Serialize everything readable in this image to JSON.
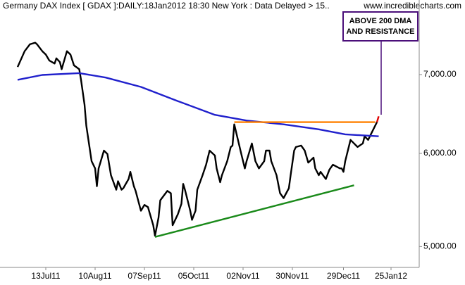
{
  "chart_data": {
    "type": "line",
    "title": "Germany DAX Index [ GDAX ]:DAILY:18Jan2012 18:30 New York : Data Delayed > 15..",
    "source": "www.incrediblecharts.com",
    "annotation": [
      "ABOVE 200 DMA",
      "AND RESISTANCE"
    ],
    "annotation_color": "#4b0f7a",
    "ylog": true,
    "grid": false,
    "xlim": [
      "2011-06-17",
      "2012-02-10"
    ],
    "ylim": [
      4800,
      8100
    ],
    "yticks": [
      {
        "value": 5000,
        "label": "5,000.00"
      },
      {
        "value": 6000,
        "label": "6,000.00"
      },
      {
        "value": 7000,
        "label": "7,000.00"
      }
    ],
    "xticks": [
      {
        "value": "2011-07-13",
        "label": "13Jul11"
      },
      {
        "value": "2011-08-10",
        "label": "10Aug11"
      },
      {
        "value": "2011-09-07",
        "label": "07Sep11"
      },
      {
        "value": "2011-10-05",
        "label": "05Oct11"
      },
      {
        "value": "2011-11-02",
        "label": "02Nov11"
      },
      {
        "value": "2011-11-30",
        "label": "30Nov11"
      },
      {
        "value": "2011-12-29",
        "label": "29Dec11"
      },
      {
        "value": "2012-01-25",
        "label": "25Jan12"
      }
    ],
    "series": [
      {
        "color": "#000000",
        "x": [
          "2011-06-27",
          "2011-07-01",
          "2011-07-04",
          "2011-07-07",
          "2011-07-08",
          "2011-07-11",
          "2011-07-13",
          "2011-07-15",
          "2011-07-18",
          "2011-07-19",
          "2011-07-21",
          "2011-07-22",
          "2011-07-25",
          "2011-07-27",
          "2011-07-29",
          "2011-08-01",
          "2011-08-02",
          "2011-08-04",
          "2011-08-05",
          "2011-08-08",
          "2011-08-10",
          "2011-08-11",
          "2011-08-12",
          "2011-08-15",
          "2011-08-17",
          "2011-08-19",
          "2011-08-22",
          "2011-08-23",
          "2011-08-25",
          "2011-08-26",
          "2011-08-29",
          "2011-08-30",
          "2011-09-01",
          "2011-09-02",
          "2011-09-05",
          "2011-09-07",
          "2011-09-09",
          "2011-09-12",
          "2011-09-13",
          "2011-09-15",
          "2011-09-16",
          "2011-09-19",
          "2011-09-20",
          "2011-09-22",
          "2011-09-23",
          "2011-09-26",
          "2011-09-28",
          "2011-09-29",
          "2011-09-30",
          "2011-10-03",
          "2011-10-04",
          "2011-10-06",
          "2011-10-07",
          "2011-10-10",
          "2011-10-12",
          "2011-10-14",
          "2011-10-17",
          "2011-10-18",
          "2011-10-20",
          "2011-10-21",
          "2011-10-24",
          "2011-10-26",
          "2011-10-27",
          "2011-10-28",
          "2011-11-01",
          "2011-11-03",
          "2011-11-04",
          "2011-11-07",
          "2011-11-09",
          "2011-11-11",
          "2011-11-14",
          "2011-11-15",
          "2011-11-17",
          "2011-11-18",
          "2011-11-21",
          "2011-11-23",
          "2011-11-25",
          "2011-11-28",
          "2011-11-29",
          "2011-12-01",
          "2011-12-02",
          "2011-12-05",
          "2011-12-07",
          "2011-12-09",
          "2011-12-12",
          "2011-12-13",
          "2011-12-15",
          "2011-12-16",
          "2011-12-19",
          "2011-12-21",
          "2011-12-23",
          "2011-12-27",
          "2011-12-28",
          "2011-12-29",
          "2011-12-30",
          "2012-01-02",
          "2012-01-04",
          "2012-01-06",
          "2012-01-09",
          "2012-01-10",
          "2012-01-12",
          "2012-01-13",
          "2012-01-16",
          "2012-01-17"
        ],
        "values": [
          7105,
          7328,
          7428,
          7450,
          7428,
          7328,
          7280,
          7195,
          7153,
          7226,
          7174,
          7074,
          7328,
          7280,
          7127,
          7074,
          6929,
          6599,
          6334,
          5909,
          5826,
          5627,
          5826,
          6033,
          5992,
          5749,
          5588,
          5682,
          5588,
          5604,
          5706,
          5787,
          5627,
          5575,
          5363,
          5424,
          5401,
          5213,
          5107,
          5290,
          5474,
          5550,
          5575,
          5550,
          5213,
          5327,
          5436,
          5652,
          5588,
          5363,
          5268,
          5363,
          5588,
          5749,
          5868,
          6033,
          5975,
          5826,
          5670,
          5749,
          5909,
          6075,
          6092,
          6351,
          5992,
          5826,
          5909,
          6118,
          5909,
          5826,
          5909,
          6033,
          6033,
          5909,
          5749,
          5550,
          5497,
          5604,
          5749,
          6033,
          6075,
          6092,
          6033,
          5892,
          5950,
          5826,
          5749,
          5787,
          5706,
          5811,
          5868,
          5826,
          5826,
          5787,
          5909,
          6160,
          6118,
          6075,
          6118,
          6204,
          6160,
          6204,
          6334,
          6378
        ]
      },
      {
        "color": "#2020cc",
        "x": [
          "2011-06-27",
          "2011-07-11",
          "2011-08-01",
          "2011-08-16",
          "2011-09-05",
          "2011-09-26",
          "2011-10-17",
          "2011-11-04",
          "2011-11-25",
          "2011-12-15",
          "2011-12-30",
          "2012-01-18"
        ],
        "values": [
          6929,
          6995,
          7020,
          6960,
          6833,
          6646,
          6470,
          6398,
          6351,
          6289,
          6228,
          6204
        ]
      },
      {
        "color": "#ff8000",
        "x": [
          "2011-10-28",
          "2012-01-16"
        ],
        "values": [
          6378,
          6378
        ]
      },
      {
        "color": "#1a8a1a",
        "x": [
          "2011-09-13",
          "2012-01-04"
        ],
        "values": [
          5095,
          5637
        ]
      },
      {
        "color": "#e00000",
        "x": [
          "2012-01-17",
          "2012-01-18"
        ],
        "values": [
          6378,
          6451
        ]
      }
    ]
  }
}
